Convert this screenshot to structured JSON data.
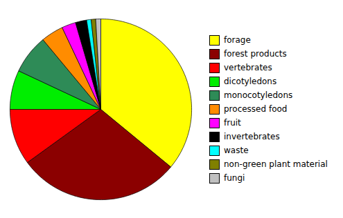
{
  "chart_data": {
    "type": "pie",
    "categories": [
      "forage",
      "forest products",
      "vertebrates",
      "dicotyledons",
      "monocotyledons",
      "processed food",
      "fruit",
      "invertebrates",
      "waste",
      "non-green plant material",
      "fungi"
    ],
    "values": [
      36,
      29,
      10,
      7,
      7,
      4,
      2.5,
      2,
      0.8,
      0.8,
      0.9
    ],
    "colors": [
      "#ffff00",
      "#8b0000",
      "#ff0000",
      "#00ee00",
      "#2e8b57",
      "#ff8c00",
      "#ff00ff",
      "#000000",
      "#00ffff",
      "#808000",
      "#c0c0c0"
    ],
    "legend": "right"
  }
}
